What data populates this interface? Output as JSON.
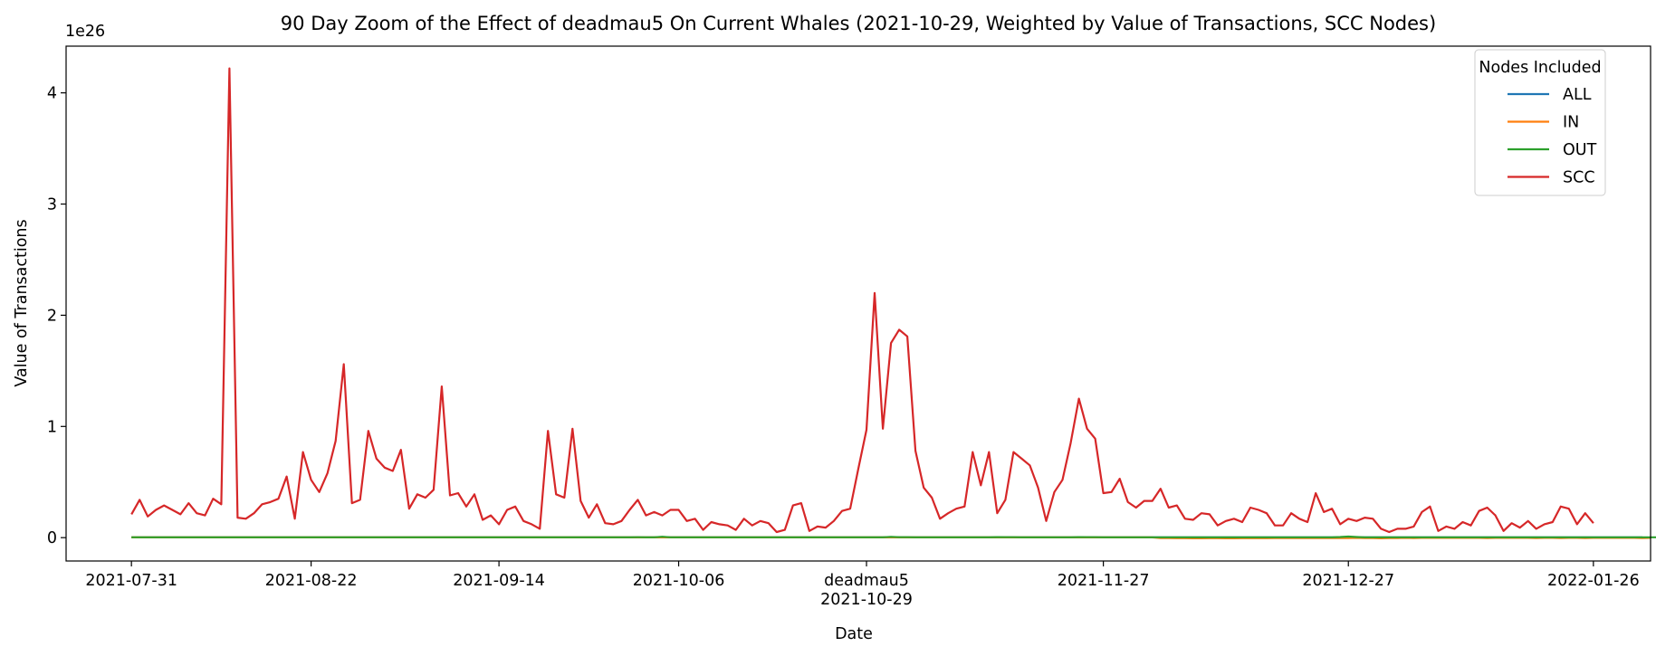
{
  "chart_data": {
    "type": "line",
    "title": "90 Day Zoom of the Effect of deadmau5 On Current Whales (2021-10-29, Weighted by Value of Transactions, SCC Nodes)",
    "xlabel": "Date",
    "ylabel": "Value of Transactions",
    "y_offset_label": "1e26",
    "y_unit_multiplier": 1e+26,
    "x_range": [
      "2021-07-23",
      "2022-02-02"
    ],
    "ylim": [
      -0.21,
      4.42
    ],
    "y_ticks": [
      0,
      1,
      2,
      3,
      4
    ],
    "y_tick_labels": [
      "0",
      "1",
      "2",
      "3",
      "4"
    ],
    "x_ticks": [
      {
        "date": "2021-07-31",
        "label": "2021-07-31"
      },
      {
        "date": "2021-08-22",
        "label": "2021-08-22"
      },
      {
        "date": "2021-09-14",
        "label": "2021-09-14"
      },
      {
        "date": "2021-10-06",
        "label": "2021-10-06"
      },
      {
        "date": "2021-10-29",
        "label": "deadmau5",
        "label2": "2021-10-29"
      },
      {
        "date": "2021-11-27",
        "label": "2021-11-27"
      },
      {
        "date": "2021-12-27",
        "label": "2021-12-27"
      },
      {
        "date": "2022-01-26",
        "label": "2022-01-26"
      }
    ],
    "grid": false,
    "legend": {
      "title": "Nodes Included",
      "placement": "top-right"
    },
    "start_date": "2021-07-31",
    "series": [
      {
        "name": "ALL",
        "color": "#1f77b4",
        "values": [
          0.002,
          0.002,
          0.002,
          0.002,
          0.002,
          0.002,
          0.002,
          0.002,
          0.002,
          0.002,
          0.002,
          0.002,
          0.002,
          0.002,
          0.002,
          0.002,
          0.002,
          0.002,
          0.002,
          0.002,
          0.002,
          0.002,
          0.002,
          0.002,
          0.002,
          0.002,
          0.002,
          0.002,
          0.002,
          0.002,
          0.002,
          0.002,
          0.002,
          0.002,
          0.002,
          0.002,
          0.002,
          0.002,
          0.002,
          0.002,
          0.002,
          0.002,
          0.002,
          0.002,
          0.002,
          0.002,
          0.002,
          0.002,
          0.002,
          0.002,
          0.002,
          0.002,
          0.002,
          0.002,
          0.002,
          0.002,
          0.002,
          0.002,
          0.002,
          0.002,
          0.002,
          0.002,
          0.002,
          0.002,
          0.002,
          0.002,
          0.002,
          0.002,
          0.002,
          0.002,
          0.002,
          0.002,
          0.002,
          0.002,
          0.002,
          0.002,
          0.002,
          0.002,
          0.002,
          0.002,
          0.002,
          0.002,
          0.002,
          0.002,
          0.002,
          0.002,
          0.002,
          0.002,
          0.002,
          0.002,
          0.002,
          0.002,
          0.002,
          0.002,
          0.002,
          0.002,
          0.002,
          0.002,
          0.002,
          0.002,
          0.002,
          0.002,
          0.002,
          0.002,
          0.002,
          0.002,
          0.002,
          0.002,
          0.002,
          0.002,
          0.002,
          0.002,
          0.002,
          0.002,
          0.002,
          0.002,
          0.002,
          0.002,
          0.002,
          0.002,
          0.002,
          0.002,
          0.002,
          0.002,
          0.002,
          0.002,
          0.002,
          0.002,
          0.002,
          0.002,
          0.002,
          0.002,
          0.002,
          0.002,
          0.002,
          0.002,
          0.002,
          0.002,
          0.002,
          0.002,
          0.002,
          0.002,
          0.002,
          0.002,
          0.002,
          0.002,
          0.002,
          0.002,
          0.002,
          0.002,
          0.002,
          0.002,
          0.002,
          0.002,
          0.002,
          0.002,
          0.002,
          0.002,
          0.002,
          0.002,
          0.002,
          0.002,
          0.002,
          0.002,
          0.002,
          0.002,
          0.002,
          0.002,
          0.002,
          0.002,
          0.002,
          0.002,
          0.002,
          0.002,
          0.002,
          0.002,
          0.002,
          0.002,
          0.002,
          0.002,
          0.002,
          0.002,
          0.002,
          0.002,
          0.002,
          0.002
        ]
      },
      {
        "name": "IN",
        "color": "#ff7f0e",
        "values": [
          0.002,
          0.002,
          0.002,
          0.002,
          0.002,
          0.002,
          0.002,
          0.002,
          0.002,
          0.002,
          0.002,
          0.002,
          0.002,
          0.002,
          0.002,
          0.002,
          0.002,
          0.002,
          0.002,
          0.002,
          0.002,
          0.002,
          0.002,
          0.002,
          0.002,
          0.002,
          0.002,
          0.002,
          0.002,
          0.002,
          0.002,
          0.002,
          0.002,
          0.002,
          0.002,
          0.002,
          0.002,
          0.002,
          0.002,
          0.002,
          0.002,
          0.002,
          0.002,
          0.002,
          0.002,
          0.002,
          0.002,
          0.002,
          0.002,
          0.002,
          0.002,
          0.002,
          0.002,
          0.002,
          0.002,
          0.002,
          0.002,
          0.002,
          0.002,
          0.002,
          0.002,
          0.002,
          0.002,
          0.002,
          0.002,
          0.002,
          0.002,
          0.002,
          0.002,
          0.002,
          0.002,
          0.002,
          0.002,
          0.002,
          0.002,
          0.002,
          0.002,
          0.002,
          0.002,
          0.002,
          0.002,
          0.002,
          0.002,
          0.002,
          0.002,
          0.002,
          0.002,
          0.002,
          0.002,
          0.002,
          0.002,
          0.002,
          0.002,
          0.002,
          0.002,
          0.002,
          0.002,
          0.002,
          0.002,
          0.002,
          0.002,
          0.002,
          0.002,
          0.002,
          0.002,
          0.002,
          0.002,
          0.002,
          0.002,
          0.002,
          0.002,
          0.002,
          0.002,
          0.002,
          0.002,
          0.002,
          0.002,
          0.002,
          0.002,
          0.002,
          0.002,
          0.002,
          0.002,
          0.002,
          0.002,
          0.002,
          -0.004,
          -0.004,
          -0.005,
          -0.005,
          -0.006,
          -0.006,
          -0.005,
          -0.005,
          -0.006,
          -0.006,
          -0.005,
          -0.005,
          -0.005,
          -0.005,
          -0.004,
          -0.004,
          -0.004,
          -0.004,
          -0.003,
          -0.004,
          -0.004,
          -0.004,
          -0.003,
          -0.003,
          -0.002,
          -0.003,
          -0.004,
          -0.006,
          -0.003,
          -0.003,
          -0.002,
          -0.003,
          -0.002,
          -0.002,
          -0.002,
          -0.002,
          -0.002,
          -0.002,
          -0.002,
          -0.002,
          -0.003,
          -0.002,
          -0.002,
          -0.002,
          -0.002,
          -0.002,
          -0.003,
          -0.002,
          -0.002,
          -0.003,
          -0.002,
          -0.002,
          -0.003,
          -0.002,
          -0.002,
          -0.002,
          -0.002,
          -0.002,
          -0.002,
          -0.003,
          -0.002
        ]
      },
      {
        "name": "OUT",
        "color": "#2ca02c",
        "values": [
          0.003,
          0.003,
          0.003,
          0.003,
          0.003,
          0.003,
          0.003,
          0.003,
          0.003,
          0.003,
          0.003,
          0.003,
          0.003,
          0.003,
          0.003,
          0.003,
          0.003,
          0.003,
          0.003,
          0.003,
          0.003,
          0.003,
          0.003,
          0.003,
          0.003,
          0.003,
          0.003,
          0.003,
          0.003,
          0.003,
          0.003,
          0.003,
          0.003,
          0.003,
          0.003,
          0.003,
          0.003,
          0.003,
          0.003,
          0.003,
          0.003,
          0.003,
          0.003,
          0.003,
          0.003,
          0.003,
          0.003,
          0.003,
          0.003,
          0.003,
          0.003,
          0.003,
          0.003,
          0.003,
          0.003,
          0.003,
          0.003,
          0.003,
          0.003,
          0.003,
          0.003,
          0.003,
          0.004,
          0.003,
          0.003,
          0.008,
          0.003,
          0.003,
          0.003,
          0.003,
          0.003,
          0.003,
          0.003,
          0.003,
          0.003,
          0.003,
          0.003,
          0.003,
          0.003,
          0.003,
          0.003,
          0.003,
          0.003,
          0.003,
          0.003,
          0.003,
          0.003,
          0.003,
          0.003,
          0.003,
          0.003,
          0.003,
          0.003,
          0.007,
          0.004,
          0.004,
          0.003,
          0.003,
          0.003,
          0.003,
          0.003,
          0.003,
          0.003,
          0.003,
          0.003,
          0.003,
          0.005,
          0.004,
          0.004,
          0.003,
          0.003,
          0.003,
          0.003,
          0.003,
          0.003,
          0.003,
          0.005,
          0.004,
          0.004,
          0.003,
          0.003,
          0.003,
          0.003,
          0.003,
          0.003,
          0.003,
          0.003,
          0.003,
          0.003,
          0.003,
          0.003,
          0.003,
          0.003,
          0.003,
          0.003,
          0.003,
          0.003,
          0.003,
          0.003,
          0.003,
          0.003,
          0.003,
          0.003,
          0.003,
          0.003,
          0.003,
          0.003,
          0.003,
          0.006,
          0.01,
          0.006,
          0.003,
          0.003,
          0.003,
          0.003,
          0.003,
          0.003,
          0.003,
          0.003,
          0.003,
          0.003,
          0.003,
          0.003,
          0.003,
          0.003,
          0.003,
          0.003,
          0.003,
          0.003,
          0.003,
          0.003,
          0.003,
          0.003,
          0.003,
          0.003,
          0.003,
          0.003,
          0.003,
          0.003,
          0.003,
          0.003,
          0.003,
          0.003,
          0.003,
          0.003,
          0.003,
          0.003,
          0.003,
          0.003,
          0.003,
          0.003,
          0.003,
          0.003
        ]
      },
      {
        "name": "SCC",
        "color": "#d62728",
        "values": [
          0.21,
          0.34,
          0.19,
          0.25,
          0.29,
          0.25,
          0.21,
          0.31,
          0.22,
          0.2,
          0.35,
          0.3,
          4.22,
          0.18,
          0.17,
          0.22,
          0.3,
          0.32,
          0.35,
          0.55,
          0.17,
          0.77,
          0.52,
          0.41,
          0.58,
          0.87,
          1.56,
          0.31,
          0.34,
          0.96,
          0.71,
          0.63,
          0.6,
          0.79,
          0.26,
          0.39,
          0.36,
          0.43,
          1.36,
          0.38,
          0.4,
          0.28,
          0.39,
          0.16,
          0.2,
          0.12,
          0.25,
          0.28,
          0.15,
          0.12,
          0.08,
          0.96,
          0.39,
          0.36,
          0.98,
          0.33,
          0.18,
          0.3,
          0.13,
          0.12,
          0.15,
          0.25,
          0.34,
          0.2,
          0.23,
          0.2,
          0.25,
          0.25,
          0.15,
          0.17,
          0.07,
          0.14,
          0.12,
          0.11,
          0.07,
          0.17,
          0.11,
          0.15,
          0.13,
          0.05,
          0.07,
          0.29,
          0.31,
          0.06,
          0.1,
          0.09,
          0.15,
          0.24,
          0.26,
          0.62,
          0.97,
          2.2,
          0.98,
          1.75,
          1.87,
          1.81,
          0.78,
          0.45,
          0.36,
          0.17,
          0.22,
          0.26,
          0.28,
          0.77,
          0.47,
          0.77,
          0.22,
          0.34,
          0.77,
          0.71,
          0.65,
          0.45,
          0.15,
          0.41,
          0.52,
          0.85,
          1.25,
          0.98,
          0.89,
          0.4,
          0.41,
          0.53,
          0.32,
          0.27,
          0.33,
          0.33,
          0.44,
          0.27,
          0.29,
          0.17,
          0.16,
          0.22,
          0.21,
          0.11,
          0.15,
          0.17,
          0.14,
          0.27,
          0.25,
          0.22,
          0.11,
          0.11,
          0.22,
          0.17,
          0.14,
          0.4,
          0.23,
          0.26,
          0.12,
          0.17,
          0.15,
          0.18,
          0.17,
          0.08,
          0.05,
          0.08,
          0.08,
          0.1,
          0.23,
          0.28,
          0.06,
          0.1,
          0.08,
          0.14,
          0.11,
          0.24,
          0.27,
          0.2,
          0.06,
          0.13,
          0.09,
          0.15,
          0.08,
          0.12,
          0.14,
          0.28,
          0.26,
          0.12,
          0.22,
          0.13
        ]
      }
    ]
  }
}
